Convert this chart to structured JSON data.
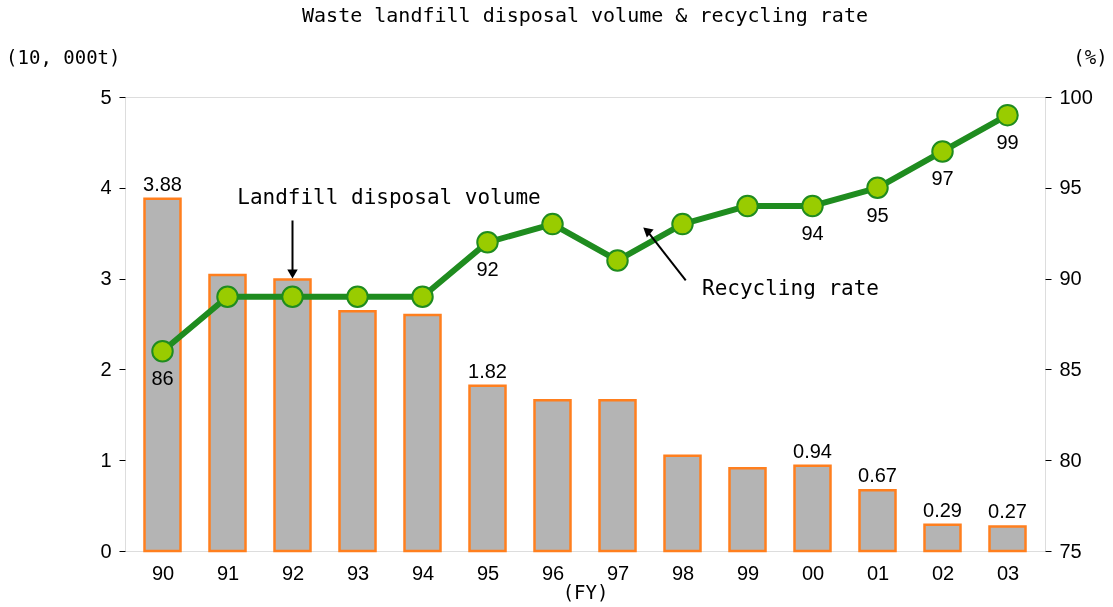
{
  "chart_data": {
    "type": "bar",
    "title": "Waste landfill disposal volume & recycling rate",
    "categories": [
      "90",
      "91",
      "92",
      "93",
      "94",
      "95",
      "96",
      "97",
      "98",
      "99",
      "00",
      "01",
      "02",
      "03"
    ],
    "xlabel": "(FY)",
    "ylabel": "(10, 000t)",
    "y2label": "(%)",
    "ylim": [
      0,
      5
    ],
    "yticks": [
      0,
      1,
      2,
      3,
      4,
      5
    ],
    "y2lim": [
      75,
      100
    ],
    "y2ticks": [
      75,
      80,
      85,
      90,
      95,
      100
    ],
    "grid": false,
    "series": [
      {
        "name": "Landfill disposal volume",
        "color": "#b4b4b4",
        "values": [
          3.88,
          3.04,
          2.99,
          2.64,
          2.6,
          1.82,
          1.66,
          1.66,
          1.05,
          0.91,
          0.94,
          0.67,
          0.29,
          0.27
        ],
        "value_labels": [
          "3.88",
          null,
          null,
          null,
          null,
          "1.82",
          null,
          null,
          null,
          null,
          "0.94",
          "0.67",
          "0.29",
          "0.27"
        ]
      },
      {
        "name": "Recycling rate",
        "type": "line",
        "axis": "y2",
        "color": "#1f8c1f",
        "marker": "circle",
        "line_style": "solid",
        "values": [
          86,
          89,
          89,
          89,
          89,
          92,
          93,
          91,
          93,
          94,
          94,
          95,
          97,
          99
        ],
        "value_labels": [
          "86",
          null,
          null,
          null,
          null,
          "92",
          null,
          null,
          null,
          null,
          "94",
          "95",
          "97",
          "99"
        ]
      }
    ]
  }
}
